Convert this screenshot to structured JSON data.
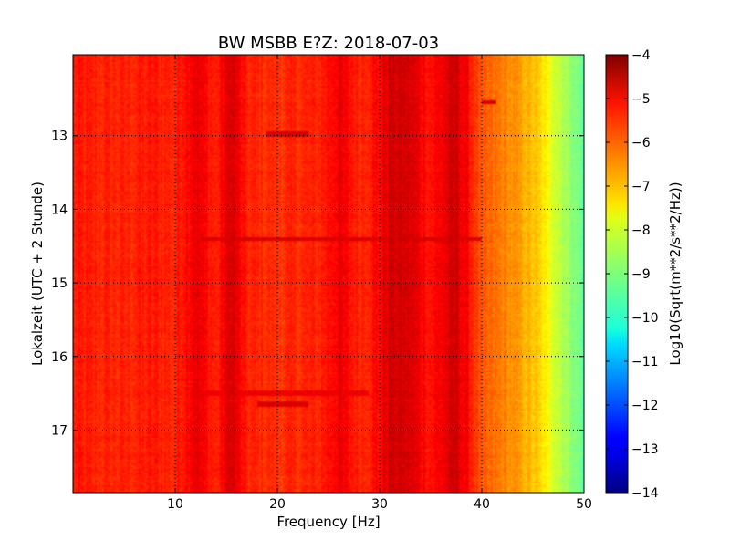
{
  "chart_data": {
    "type": "heatmap",
    "title": "BW MSBB E?Z: 2018-07-03",
    "xlabel": "Frequency [Hz]",
    "ylabel": "Lokalzeit (UTC + 2 Stunde)",
    "xlim": [
      0,
      50
    ],
    "ylim": [
      11.9,
      17.85
    ],
    "y_inverted": true,
    "xticks": [
      10,
      20,
      30,
      40,
      50
    ],
    "yticks": [
      13,
      14,
      15,
      16,
      17
    ],
    "grid": true,
    "grid_style": "dotted",
    "colorbar": {
      "label": "Log10(Sqrt(m**2/s**2/Hz))",
      "colormap": "jet",
      "range": [
        -14,
        -4
      ],
      "ticks": [
        -4,
        -5,
        -6,
        -7,
        -8,
        -9,
        -10,
        -11,
        -12,
        -13,
        -14
      ]
    },
    "spectral_profile": {
      "description_values_log10": true,
      "frequency_hz": [
        0,
        2,
        5,
        8,
        10,
        12,
        14,
        15.5,
        17,
        20,
        24,
        26,
        28,
        30,
        31,
        33,
        35,
        37.5,
        39,
        40,
        42,
        44,
        45.5,
        46.5,
        48,
        50
      ],
      "level": [
        -5.5,
        -5.6,
        -5.6,
        -5.5,
        -5.6,
        -5.0,
        -5.6,
        -4.8,
        -5.6,
        -5.7,
        -5.6,
        -5.1,
        -5.6,
        -5.3,
        -4.8,
        -4.9,
        -5.4,
        -4.8,
        -5.5,
        -6.2,
        -6.5,
        -6.9,
        -7.3,
        -7.8,
        -8.5,
        -9.3
      ]
    },
    "vertical_bands_hz": [
      12,
      15.6,
      24.9,
      26.6,
      31,
      32.5,
      37.6
    ],
    "horizontal_events": [
      {
        "time": 14.4,
        "f_start": 12.5,
        "f_end": 40,
        "level": -4.9
      },
      {
        "time": 16.5,
        "f_start": 12,
        "f_end": 29,
        "level": -5.1
      },
      {
        "time": 16.65,
        "f_start": 18,
        "f_end": 23,
        "level": -4.9
      },
      {
        "time": 12.98,
        "f_start": 19,
        "f_end": 23,
        "level": -4.9
      },
      {
        "time": 12.55,
        "f_start": 40,
        "f_end": 41.5,
        "level": -4.9
      }
    ]
  }
}
